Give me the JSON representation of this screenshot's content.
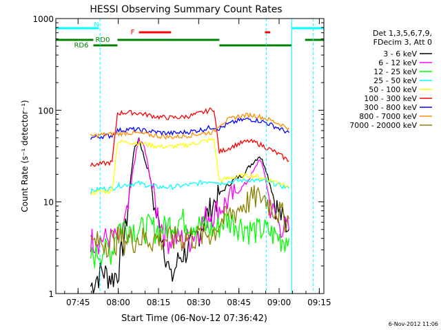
{
  "chart_data": {
    "type": "line",
    "title": "HESSI Observing Summary Count Rates",
    "xlabel": "Start Time (06-Nov-12 07:36:42)",
    "ylabel": "Count Rate (s⁻¹ detector⁻¹)",
    "yscale": "log",
    "ylim": [
      1,
      1000
    ],
    "xlim_minutes": [
      0,
      100
    ],
    "yticks": [
      "1",
      "10",
      "100",
      "1000"
    ],
    "xticks": [
      {
        "m": 8.3,
        "label": "07:45"
      },
      {
        "m": 23.3,
        "label": "08:00"
      },
      {
        "m": 38.3,
        "label": "08:15"
      },
      {
        "m": 53.3,
        "label": "08:30"
      },
      {
        "m": 68.3,
        "label": "08:45"
      },
      {
        "m": 83.3,
        "label": "09:00"
      },
      {
        "m": 98.3,
        "label": "09:15"
      }
    ],
    "legend_placement": "right",
    "legend_header": [
      "Det 1,3,5,6,7,9,",
      "FDecim 3, Att 0"
    ],
    "series": [
      {
        "name": "3 - 6 keV",
        "color": "#000000",
        "points": [
          [
            13,
            1.2
          ],
          [
            17,
            1.8
          ],
          [
            21,
            1.5
          ],
          [
            23,
            1.7
          ],
          [
            26,
            5
          ],
          [
            29,
            35
          ],
          [
            31,
            50
          ],
          [
            33,
            30
          ],
          [
            35,
            20
          ],
          [
            37,
            8
          ],
          [
            40,
            4
          ],
          [
            43,
            1.4
          ],
          [
            46,
            2.5
          ],
          [
            49,
            3
          ],
          [
            52,
            4
          ],
          [
            55,
            6
          ],
          [
            58,
            9
          ],
          [
            61,
            12
          ],
          [
            64,
            15
          ],
          [
            67,
            18
          ],
          [
            70,
            20
          ],
          [
            73,
            26
          ],
          [
            76,
            32
          ],
          [
            78,
            25
          ],
          [
            81,
            12
          ],
          [
            83,
            8
          ],
          [
            87,
            5
          ]
        ]
      },
      {
        "name": "6 - 12 keV",
        "color": "#ff00ff",
        "points": [
          [
            13,
            4
          ],
          [
            17,
            4
          ],
          [
            21,
            4
          ],
          [
            23,
            4
          ],
          [
            25,
            5
          ],
          [
            27,
            8
          ],
          [
            29,
            25
          ],
          [
            31,
            48
          ],
          [
            33,
            40
          ],
          [
            35,
            20
          ],
          [
            37,
            10
          ],
          [
            39,
            6
          ],
          [
            42,
            4
          ],
          [
            46,
            4
          ],
          [
            50,
            4
          ],
          [
            53,
            5
          ],
          [
            56,
            7
          ],
          [
            59,
            8
          ],
          [
            62,
            9
          ],
          [
            65,
            11
          ],
          [
            68,
            13
          ],
          [
            71,
            16
          ],
          [
            74,
            22
          ],
          [
            76,
            30
          ],
          [
            78,
            20
          ],
          [
            80,
            9
          ],
          [
            83,
            6
          ],
          [
            87,
            5
          ]
        ]
      },
      {
        "name": "12 - 25 keV",
        "color": "#00ff00",
        "points": [
          [
            13,
            2.5
          ],
          [
            17,
            3
          ],
          [
            21,
            3
          ],
          [
            23,
            5.5
          ],
          [
            27,
            5.5
          ],
          [
            31,
            5
          ],
          [
            35,
            5.5
          ],
          [
            39,
            5
          ],
          [
            43,
            6
          ],
          [
            47,
            6.5
          ],
          [
            51,
            6
          ],
          [
            55,
            5.5
          ],
          [
            59,
            5
          ],
          [
            62,
            6
          ],
          [
            64,
            6.5
          ],
          [
            67,
            6
          ],
          [
            70,
            5.5
          ],
          [
            73,
            5
          ],
          [
            76,
            5
          ],
          [
            78,
            5
          ],
          [
            81,
            4.5
          ],
          [
            84,
            4
          ],
          [
            87,
            4
          ]
        ]
      },
      {
        "name": "25 - 50 keV",
        "color": "#00ffff",
        "points": [
          [
            13,
            13
          ],
          [
            17,
            14
          ],
          [
            21,
            14
          ],
          [
            23,
            15
          ],
          [
            27,
            15.5
          ],
          [
            31,
            16
          ],
          [
            35,
            15
          ],
          [
            39,
            14.5
          ],
          [
            43,
            14.5
          ],
          [
            47,
            15
          ],
          [
            51,
            15.5
          ],
          [
            55,
            16.5
          ],
          [
            59,
            17
          ],
          [
            61,
            16
          ],
          [
            64,
            16.5
          ],
          [
            68,
            17
          ],
          [
            72,
            17.5
          ],
          [
            75,
            17
          ],
          [
            78,
            17
          ],
          [
            81,
            16
          ],
          [
            84,
            15
          ],
          [
            87,
            14
          ]
        ]
      },
      {
        "name": "50 - 100 keV",
        "color": "#ffff00",
        "points": [
          [
            13,
            12.5
          ],
          [
            17,
            13
          ],
          [
            21,
            13
          ],
          [
            23,
            45
          ],
          [
            27,
            45
          ],
          [
            31,
            44
          ],
          [
            35,
            42
          ],
          [
            39,
            40
          ],
          [
            43,
            40
          ],
          [
            47,
            41
          ],
          [
            51,
            43
          ],
          [
            55,
            46
          ],
          [
            59,
            48
          ],
          [
            61,
            17
          ],
          [
            64,
            18
          ],
          [
            68,
            19
          ],
          [
            72,
            19.5
          ],
          [
            75,
            19
          ],
          [
            78,
            18
          ],
          [
            81,
            17
          ],
          [
            84,
            16
          ],
          [
            87,
            15
          ]
        ]
      },
      {
        "name": "100 - 300 keV",
        "color": "#ff0000",
        "points": [
          [
            13,
            25
          ],
          [
            17,
            26
          ],
          [
            21,
            27
          ],
          [
            23,
            93
          ],
          [
            27,
            95
          ],
          [
            31,
            93
          ],
          [
            35,
            88
          ],
          [
            39,
            84
          ],
          [
            43,
            83
          ],
          [
            47,
            84
          ],
          [
            51,
            88
          ],
          [
            55,
            95
          ],
          [
            59,
            104
          ],
          [
            61,
            35
          ],
          [
            64,
            38
          ],
          [
            68,
            43
          ],
          [
            72,
            46
          ],
          [
            75,
            44
          ],
          [
            78,
            40
          ],
          [
            81,
            36
          ],
          [
            84,
            32
          ],
          [
            87,
            28
          ]
        ]
      },
      {
        "name": "300 - 800 keV",
        "color": "#0000ff",
        "points": [
          [
            13,
            50
          ],
          [
            17,
            52
          ],
          [
            21,
            53
          ],
          [
            23,
            60
          ],
          [
            27,
            62
          ],
          [
            31,
            61
          ],
          [
            35,
            59
          ],
          [
            39,
            57
          ],
          [
            43,
            56
          ],
          [
            47,
            57
          ],
          [
            51,
            59
          ],
          [
            55,
            62
          ],
          [
            59,
            66
          ],
          [
            61,
            63
          ],
          [
            64,
            70
          ],
          [
            68,
            77
          ],
          [
            72,
            80
          ],
          [
            75,
            78
          ],
          [
            78,
            74
          ],
          [
            81,
            68
          ],
          [
            84,
            62
          ],
          [
            87,
            57
          ]
        ]
      },
      {
        "name": "800 - 7000 keV",
        "color": "#ff8c00",
        "points": [
          [
            13,
            52
          ],
          [
            17,
            54
          ],
          [
            21,
            55
          ],
          [
            23,
            55
          ],
          [
            27,
            57
          ],
          [
            31,
            56
          ],
          [
            35,
            54
          ],
          [
            39,
            52
          ],
          [
            43,
            51
          ],
          [
            47,
            52
          ],
          [
            51,
            54
          ],
          [
            55,
            56
          ],
          [
            59,
            58
          ],
          [
            61,
            70
          ],
          [
            64,
            78
          ],
          [
            68,
            86
          ],
          [
            72,
            89
          ],
          [
            75,
            87
          ],
          [
            78,
            82
          ],
          [
            81,
            76
          ],
          [
            84,
            70
          ],
          [
            87,
            64
          ]
        ]
      },
      {
        "name": "7000 - 20000 keV",
        "color": "#8b8000",
        "points": [
          [
            13,
            3.5
          ],
          [
            17,
            3.7
          ],
          [
            21,
            3.9
          ],
          [
            23,
            4
          ],
          [
            27,
            4
          ],
          [
            31,
            4.1
          ],
          [
            35,
            4
          ],
          [
            39,
            4
          ],
          [
            43,
            4
          ],
          [
            47,
            4.1
          ],
          [
            51,
            4.2
          ],
          [
            55,
            4.4
          ],
          [
            59,
            4.8
          ],
          [
            61,
            6
          ],
          [
            64,
            7
          ],
          [
            67,
            8
          ],
          [
            70,
            9.5
          ],
          [
            73,
            11
          ],
          [
            76,
            12
          ],
          [
            78,
            11
          ],
          [
            81,
            9
          ],
          [
            84,
            7.5
          ],
          [
            87,
            6.5
          ]
        ]
      }
    ],
    "flag_bars": [
      {
        "label": "N",
        "color": "#00ffff",
        "y": 1,
        "segments": [
          [
            0,
            16
          ],
          [
            88,
            100
          ]
        ]
      },
      {
        "label": "RD0",
        "color": "#008000",
        "y": 2,
        "segments": [
          [
            0,
            14
          ],
          [
            23,
            61
          ],
          [
            93,
            100
          ]
        ]
      },
      {
        "label": "RD6",
        "color": "#008000",
        "y": 3,
        "segments": [
          [
            14,
            23
          ],
          [
            61,
            88
          ]
        ]
      },
      {
        "label": "F",
        "color": "#ff0000",
        "y": 0,
        "segments": [
          [
            31,
            43
          ],
          [
            78,
            80
          ]
        ]
      }
    ],
    "vlines": [
      {
        "m": 16.5,
        "color": "#00ffff",
        "style": "dashed"
      },
      {
        "m": 78.5,
        "color": "#00ffff",
        "style": "dashed"
      },
      {
        "m": 88,
        "color": "#00ffff",
        "style": "solid"
      },
      {
        "m": 96,
        "color": "#00ffff",
        "style": "dashed"
      }
    ],
    "footer_date": "6-Nov-2012 11:06"
  }
}
